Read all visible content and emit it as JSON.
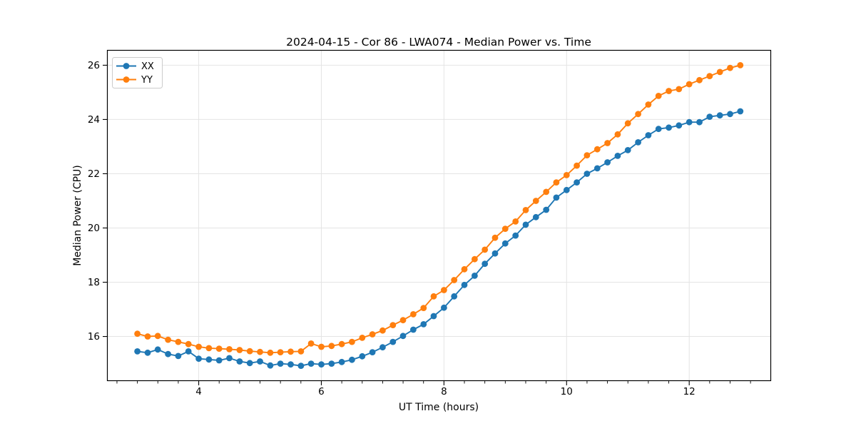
{
  "chart_data": {
    "type": "line",
    "title": "2024-04-15 - Cor 86 - LWA074 - Median Power vs. Time",
    "xlabel": "UT Time (hours)",
    "ylabel": "Median Power (CPU)",
    "xlim": [
      2.51,
      13.33
    ],
    "ylim": [
      14.37,
      26.55
    ],
    "xticks": [
      4,
      6,
      8,
      10,
      12
    ],
    "yticks": [
      16,
      18,
      20,
      22,
      24,
      26
    ],
    "x_minor_tick_step_hours": 0.333,
    "grid": "major",
    "legend_position": "upper-left",
    "marker": "circle",
    "x": [
      3.0,
      3.167,
      3.333,
      3.5,
      3.667,
      3.833,
      4.0,
      4.167,
      4.333,
      4.5,
      4.667,
      4.833,
      5.0,
      5.167,
      5.333,
      5.5,
      5.667,
      5.833,
      6.0,
      6.167,
      6.333,
      6.5,
      6.667,
      6.833,
      7.0,
      7.167,
      7.333,
      7.5,
      7.667,
      7.833,
      8.0,
      8.167,
      8.333,
      8.5,
      8.667,
      8.833,
      9.0,
      9.167,
      9.333,
      9.5,
      9.667,
      9.833,
      10.0,
      10.167,
      10.333,
      10.5,
      10.667,
      10.833,
      11.0,
      11.167,
      11.333,
      11.5,
      11.667,
      11.833,
      12.0,
      12.167,
      12.333,
      12.5,
      12.667,
      12.833
    ],
    "series": [
      {
        "name": "XX",
        "color": "#1f77b4",
        "values": [
          15.45,
          15.4,
          15.52,
          15.35,
          15.28,
          15.45,
          15.18,
          15.15,
          15.12,
          15.2,
          15.08,
          15.02,
          15.08,
          14.93,
          15.0,
          14.97,
          14.92,
          15.0,
          14.97,
          15.0,
          15.06,
          15.14,
          15.27,
          15.42,
          15.6,
          15.8,
          16.02,
          16.25,
          16.45,
          16.75,
          17.06,
          17.48,
          17.9,
          18.24,
          18.68,
          19.06,
          19.43,
          19.72,
          20.12,
          20.4,
          20.67,
          21.12,
          21.4,
          21.68,
          22.0,
          22.2,
          22.42,
          22.66,
          22.87,
          23.16,
          23.42,
          23.65,
          23.7,
          23.78,
          23.9,
          23.9,
          24.1,
          24.15,
          24.2,
          24.3
        ]
      },
      {
        "name": "YY",
        "color": "#ff7f0e",
        "values": [
          16.1,
          16.0,
          16.02,
          15.88,
          15.8,
          15.72,
          15.62,
          15.57,
          15.55,
          15.53,
          15.5,
          15.46,
          15.43,
          15.4,
          15.42,
          15.44,
          15.45,
          15.74,
          15.62,
          15.65,
          15.72,
          15.8,
          15.95,
          16.08,
          16.22,
          16.42,
          16.6,
          16.82,
          17.05,
          17.48,
          17.71,
          18.08,
          18.48,
          18.85,
          19.2,
          19.64,
          19.97,
          20.24,
          20.66,
          21.0,
          21.33,
          21.68,
          21.95,
          22.3,
          22.68,
          22.9,
          23.13,
          23.45,
          23.86,
          24.2,
          24.55,
          24.87,
          25.05,
          25.12,
          25.3,
          25.45,
          25.6,
          25.75,
          25.9,
          26.0
        ]
      }
    ]
  }
}
